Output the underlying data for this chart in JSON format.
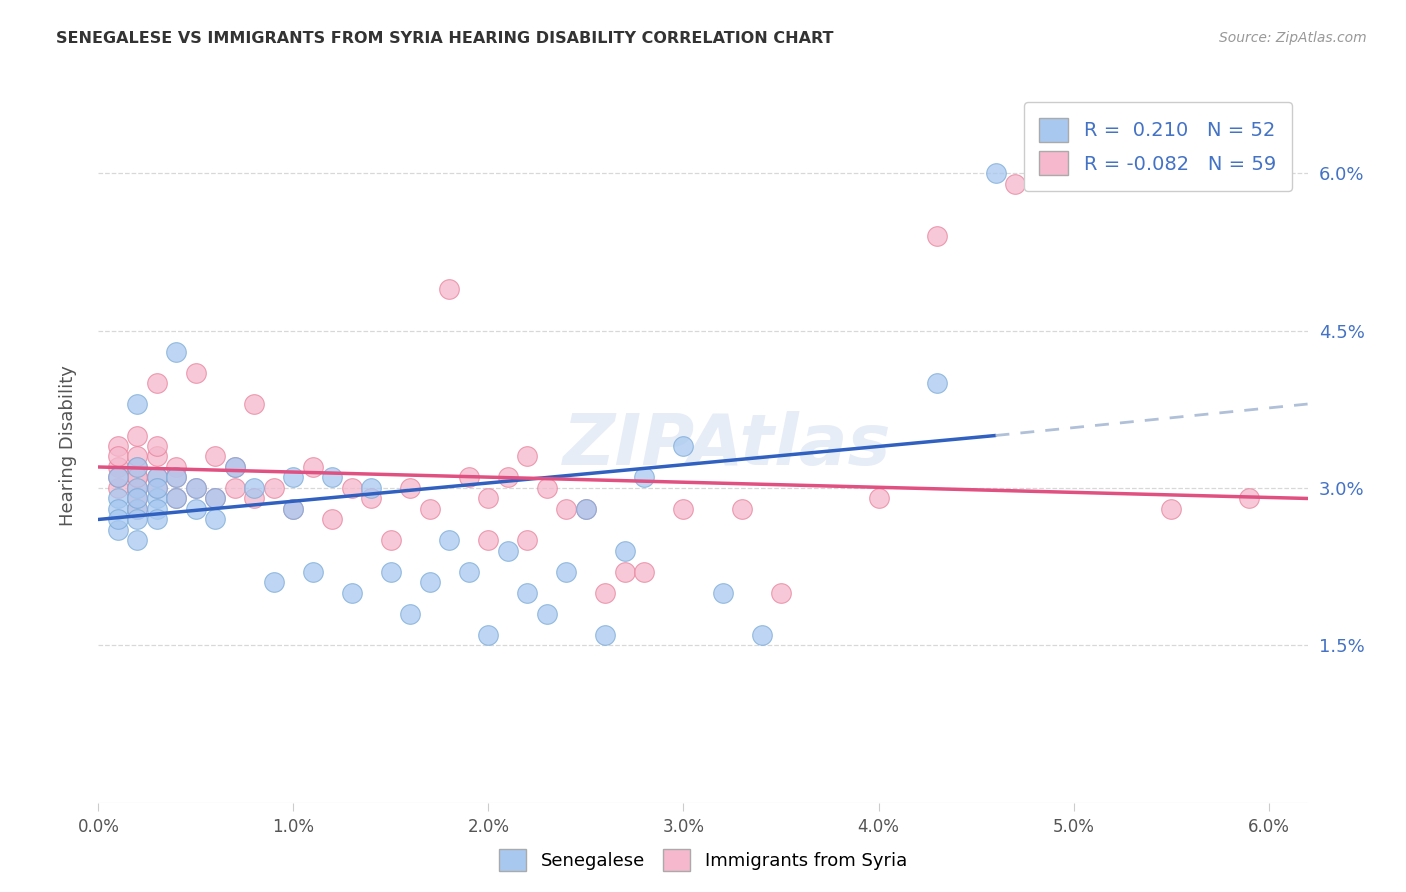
{
  "title": "SENEGALESE VS IMMIGRANTS FROM SYRIA HEARING DISABILITY CORRELATION CHART",
  "source": "Source: ZipAtlas.com",
  "ylabel": "Hearing Disability",
  "xlim": [
    0.0,
    0.062
  ],
  "ylim": [
    0.0,
    0.068
  ],
  "xtick_labels": [
    "0.0%",
    "1.0%",
    "2.0%",
    "3.0%",
    "4.0%",
    "5.0%",
    "6.0%"
  ],
  "xtick_values": [
    0.0,
    0.01,
    0.02,
    0.03,
    0.04,
    0.05,
    0.06
  ],
  "ytick_labels": [
    "1.5%",
    "3.0%",
    "4.5%",
    "6.0%"
  ],
  "ytick_values": [
    0.015,
    0.03,
    0.045,
    0.06
  ],
  "senegalese_color": "#a8c8f0",
  "senegalese_edge": "#7aaad8",
  "syria_color": "#f5b8cc",
  "syria_edge": "#e8809a",
  "line_blue": "#3060c0",
  "line_pink": "#e05080",
  "line_dash": "#b0c0d8",
  "senegalese_R": 0.21,
  "senegalese_N": 52,
  "syria_R": -0.082,
  "syria_N": 59,
  "background_color": "#ffffff",
  "grid_color": "#d8d8d8",
  "watermark": "ZIPAtlas",
  "senegalese_x": [
    0.001,
    0.001,
    0.001,
    0.001,
    0.001,
    0.002,
    0.002,
    0.002,
    0.002,
    0.002,
    0.002,
    0.002,
    0.003,
    0.003,
    0.003,
    0.003,
    0.003,
    0.004,
    0.004,
    0.004,
    0.005,
    0.005,
    0.006,
    0.006,
    0.007,
    0.008,
    0.009,
    0.01,
    0.01,
    0.011,
    0.012,
    0.013,
    0.014,
    0.015,
    0.016,
    0.017,
    0.018,
    0.019,
    0.02,
    0.021,
    0.022,
    0.023,
    0.024,
    0.025,
    0.026,
    0.027,
    0.028,
    0.03,
    0.032,
    0.034,
    0.043,
    0.046
  ],
  "senegalese_y": [
    0.029,
    0.026,
    0.028,
    0.031,
    0.027,
    0.03,
    0.028,
    0.027,
    0.032,
    0.029,
    0.025,
    0.038,
    0.031,
    0.029,
    0.028,
    0.03,
    0.027,
    0.031,
    0.029,
    0.043,
    0.03,
    0.028,
    0.029,
    0.027,
    0.032,
    0.03,
    0.021,
    0.031,
    0.028,
    0.022,
    0.031,
    0.02,
    0.03,
    0.022,
    0.018,
    0.021,
    0.025,
    0.022,
    0.016,
    0.024,
    0.02,
    0.018,
    0.022,
    0.028,
    0.016,
    0.024,
    0.031,
    0.034,
    0.02,
    0.016,
    0.04,
    0.06
  ],
  "syria_x": [
    0.001,
    0.001,
    0.001,
    0.001,
    0.001,
    0.002,
    0.002,
    0.002,
    0.002,
    0.002,
    0.002,
    0.002,
    0.002,
    0.003,
    0.003,
    0.003,
    0.003,
    0.003,
    0.004,
    0.004,
    0.004,
    0.005,
    0.005,
    0.006,
    0.006,
    0.007,
    0.007,
    0.008,
    0.008,
    0.009,
    0.01,
    0.011,
    0.012,
    0.013,
    0.014,
    0.015,
    0.016,
    0.017,
    0.018,
    0.019,
    0.02,
    0.02,
    0.021,
    0.022,
    0.022,
    0.023,
    0.024,
    0.025,
    0.026,
    0.027,
    0.028,
    0.03,
    0.033,
    0.035,
    0.04,
    0.043,
    0.047,
    0.055,
    0.059
  ],
  "syria_y": [
    0.032,
    0.03,
    0.031,
    0.034,
    0.033,
    0.03,
    0.032,
    0.031,
    0.029,
    0.033,
    0.031,
    0.028,
    0.035,
    0.033,
    0.031,
    0.034,
    0.04,
    0.03,
    0.032,
    0.031,
    0.029,
    0.041,
    0.03,
    0.033,
    0.029,
    0.032,
    0.03,
    0.038,
    0.029,
    0.03,
    0.028,
    0.032,
    0.027,
    0.03,
    0.029,
    0.025,
    0.03,
    0.028,
    0.049,
    0.031,
    0.029,
    0.025,
    0.031,
    0.025,
    0.033,
    0.03,
    0.028,
    0.028,
    0.02,
    0.022,
    0.022,
    0.028,
    0.028,
    0.02,
    0.029,
    0.054,
    0.059,
    0.028,
    0.029
  ],
  "blue_line_x0": 0.0,
  "blue_line_y0": 0.027,
  "blue_line_x1": 0.046,
  "blue_line_y1": 0.035,
  "dash_line_x0": 0.046,
  "dash_line_y0": 0.035,
  "dash_line_x1": 0.062,
  "dash_line_y1": 0.038,
  "pink_line_x0": 0.0,
  "pink_line_y0": 0.032,
  "pink_line_x1": 0.062,
  "pink_line_y1": 0.029
}
